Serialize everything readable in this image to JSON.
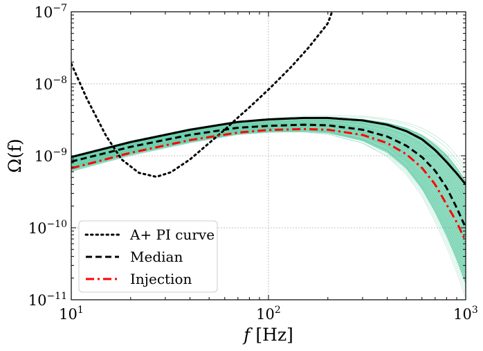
{
  "chart_data": {
    "type": "line",
    "xlabel_italic": "f",
    "xlabel_unit": "[Hz]",
    "ylabel": "Ω(f)",
    "x_scale": "log",
    "y_scale": "log",
    "xlim": [
      10,
      1000
    ],
    "ylim": [
      1e-11,
      1e-07
    ],
    "grid": true,
    "legend_position": "lower-left",
    "x_ticks": [
      {
        "base": "10",
        "exp": "1",
        "value": 10
      },
      {
        "base": "10",
        "exp": "2",
        "value": 100
      },
      {
        "base": "10",
        "exp": "3",
        "value": 1000
      }
    ],
    "y_ticks": [
      {
        "base": "10",
        "exp": "−11",
        "value": 1e-11
      },
      {
        "base": "10",
        "exp": "−10",
        "value": 1e-10
      },
      {
        "base": "10",
        "exp": "−9",
        "value": 1e-09
      },
      {
        "base": "10",
        "exp": "−8",
        "value": 1e-08
      },
      {
        "base": "10",
        "exp": "−7",
        "value": 1e-07
      }
    ],
    "series": [
      {
        "name": "A+ PI curve",
        "style": "dotted",
        "color": "#000000",
        "x": [
          10,
          12,
          15,
          18,
          22,
          27,
          32,
          40,
          50,
          60,
          70,
          80,
          100,
          130,
          160,
          200,
          210
        ],
        "y": [
          1.9e-08,
          6.2e-09,
          1.9e-09,
          8.9e-10,
          5.8e-10,
          5.1e-10,
          5.9e-10,
          8.9e-10,
          1.5e-09,
          2.3e-09,
          3.4e-09,
          4.7e-09,
          8.3e-09,
          1.7e-08,
          3.2e-08,
          6.9e-08,
          1e-07
        ]
      },
      {
        "name": "Median",
        "style": "dashed",
        "color": "#000000",
        "x": [
          10,
          20,
          40,
          70,
          100,
          150,
          200,
          300,
          400,
          500,
          600,
          700,
          800,
          900,
          1000
        ],
        "y": [
          8.3e-10,
          1.33e-09,
          1.95e-09,
          2.45e-09,
          2.6e-09,
          2.7e-09,
          2.65e-09,
          2.3e-09,
          1.85e-09,
          1.38e-09,
          9.6e-10,
          6.2e-10,
          3.6e-10,
          1.9e-10,
          1e-10
        ]
      },
      {
        "name": "Injection",
        "style": "dashdot",
        "color": "#ff0000",
        "x": [
          10,
          20,
          40,
          70,
          100,
          150,
          200,
          300,
          400,
          500,
          600,
          700,
          800,
          900,
          1000
        ],
        "y": [
          6.7e-10,
          1.1e-09,
          1.65e-09,
          2.1e-09,
          2.28e-09,
          2.35e-09,
          2.3e-09,
          1.95e-09,
          1.5e-09,
          1.05e-09,
          6.8e-10,
          4e-10,
          2.1e-10,
          1.2e-10,
          6.5e-11
        ]
      },
      {
        "name": "",
        "style": "solid",
        "color": "#000000",
        "x": [
          10,
          20,
          40,
          70,
          100,
          150,
          200,
          300,
          400,
          500,
          600,
          700,
          800,
          900,
          1000
        ],
        "y": [
          9.6e-10,
          1.55e-09,
          2.3e-09,
          2.95e-09,
          3.2e-09,
          3.35e-09,
          3.35e-09,
          3.1e-09,
          2.7e-09,
          2.2e-09,
          1.7e-09,
          1.2e-09,
          8.2e-10,
          5.7e-10,
          4e-10
        ]
      }
    ],
    "posterior_band": {
      "color": "#3cbf8f",
      "x": [
        10,
        20,
        40,
        70,
        100,
        150,
        200,
        300,
        400,
        500,
        600,
        700,
        800,
        900,
        1000
      ],
      "lower": [
        6e-10,
        1e-09,
        1.5e-09,
        1.95e-09,
        2.1e-09,
        2.15e-09,
        2.05e-09,
        1.6e-09,
        1.1e-09,
        6.5e-10,
        3.4e-10,
        1.6e-10,
        7.5e-11,
        3.5e-11,
        1.6e-11
      ],
      "upper": [
        1e-09,
        1.62e-09,
        2.4e-09,
        3.05e-09,
        3.3e-09,
        3.45e-09,
        3.45e-09,
        3.25e-09,
        2.9e-09,
        2.45e-09,
        1.95e-09,
        1.45e-09,
        1.05e-09,
        7e-10,
        4.5e-10
      ]
    },
    "legend": [
      {
        "label": "A+ PI curve",
        "style": "dotted",
        "color": "#000000"
      },
      {
        "label": "Median",
        "style": "dashed",
        "color": "#000000"
      },
      {
        "label": "Injection",
        "style": "dashdot",
        "color": "#ff0000"
      }
    ]
  }
}
